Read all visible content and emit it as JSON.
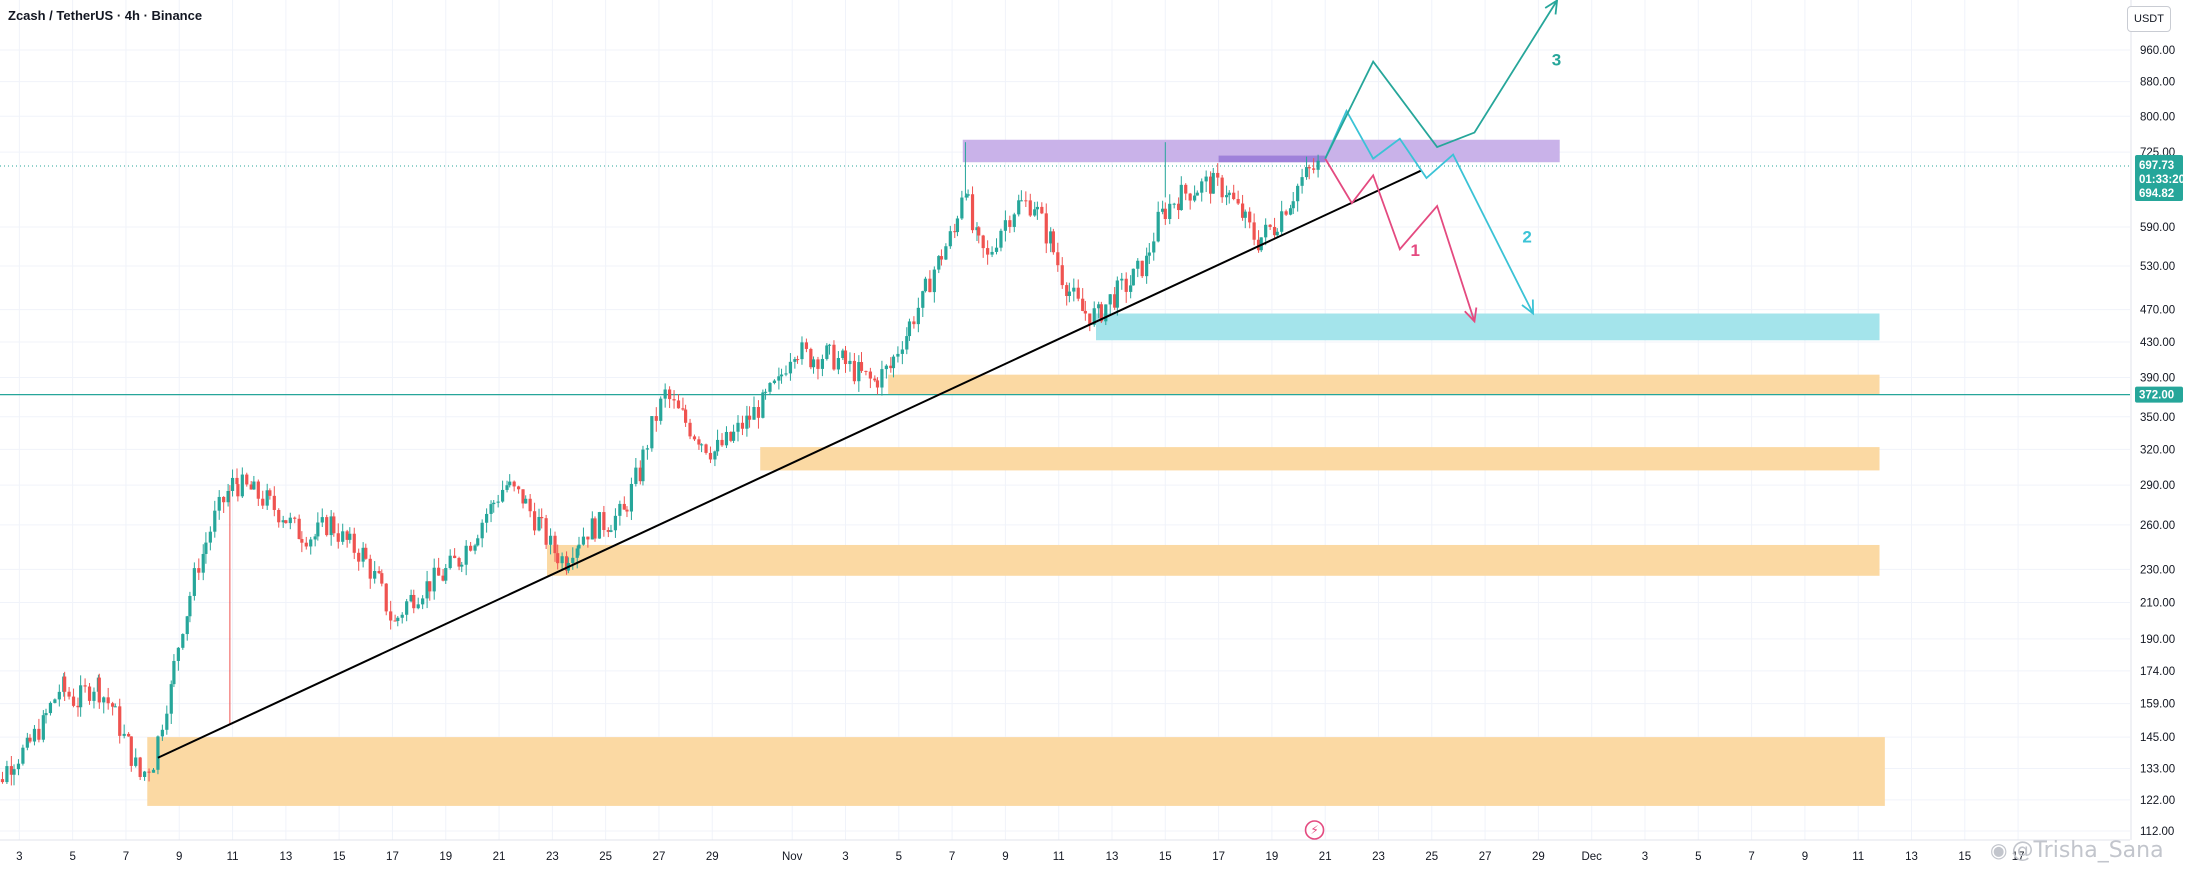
{
  "header": {
    "title": "Zcash / TetherUS · 4h · Binance",
    "currency": "USDT"
  },
  "watermark": "@Trisha_Sana",
  "colors": {
    "up": "#26a69a",
    "down": "#ef5350",
    "zone_orange": "#fbd79e",
    "zone_cyan": "#9fe3ea",
    "zone_purple": "#c6aee8",
    "trend": "#000000",
    "path1": "#e44a80",
    "path2": "#3bc3d6",
    "path3": "#26a69a"
  },
  "chart_data": {
    "type": "candlestick",
    "title": "Zcash / TetherUS · 4h · Binance",
    "xlabel": "",
    "ylabel": "",
    "yscale": "log",
    "ylim": [
      107,
      1120
    ],
    "y_ticks": [
      112,
      122,
      133,
      145,
      159,
      174,
      190,
      210,
      230,
      260,
      290,
      320,
      350,
      390,
      430,
      470,
      530,
      590,
      725,
      800,
      880,
      960
    ],
    "x_ticks": [
      {
        "d": 3,
        "label": "3"
      },
      {
        "d": 5,
        "label": "5"
      },
      {
        "d": 7,
        "label": "7"
      },
      {
        "d": 9,
        "label": "9"
      },
      {
        "d": 11,
        "label": "11"
      },
      {
        "d": 13,
        "label": "13"
      },
      {
        "d": 15,
        "label": "15"
      },
      {
        "d": 17,
        "label": "17"
      },
      {
        "d": 19,
        "label": "19"
      },
      {
        "d": 21,
        "label": "21"
      },
      {
        "d": 23,
        "label": "23"
      },
      {
        "d": 25,
        "label": "25"
      },
      {
        "d": 27,
        "label": "27"
      },
      {
        "d": 29,
        "label": "29"
      },
      {
        "d": 32,
        "label": "Nov"
      },
      {
        "d": 34,
        "label": "3"
      },
      {
        "d": 36,
        "label": "5"
      },
      {
        "d": 38,
        "label": "7"
      },
      {
        "d": 40,
        "label": "9"
      },
      {
        "d": 42,
        "label": "11"
      },
      {
        "d": 44,
        "label": "13"
      },
      {
        "d": 46,
        "label": "15"
      },
      {
        "d": 48,
        "label": "17"
      },
      {
        "d": 50,
        "label": "19"
      },
      {
        "d": 52,
        "label": "21"
      },
      {
        "d": 54,
        "label": "23"
      },
      {
        "d": 56,
        "label": "25"
      },
      {
        "d": 58,
        "label": "27"
      },
      {
        "d": 60,
        "label": "29"
      },
      {
        "d": 62,
        "label": "Dec"
      },
      {
        "d": 64,
        "label": "3"
      },
      {
        "d": 66,
        "label": "5"
      },
      {
        "d": 68,
        "label": "7"
      },
      {
        "d": 70,
        "label": "9"
      },
      {
        "d": 72,
        "label": "11"
      },
      {
        "d": 74,
        "label": "13"
      },
      {
        "d": 76,
        "label": "15"
      },
      {
        "d": 78,
        "label": "17"
      }
    ],
    "anchors": [
      [
        1.6,
        112
      ],
      [
        2.2,
        125
      ],
      [
        2.8,
        135
      ],
      [
        3.4,
        140
      ],
      [
        4.0,
        150
      ],
      [
        4.7,
        166
      ],
      [
        5.3,
        160
      ],
      [
        6.0,
        168
      ],
      [
        6.6,
        158
      ],
      [
        7.2,
        142
      ],
      [
        7.7,
        130
      ],
      [
        8.2,
        136
      ],
      [
        8.8,
        165
      ],
      [
        9.4,
        205
      ],
      [
        10.0,
        240
      ],
      [
        10.5,
        265
      ],
      [
        11.2,
        292
      ],
      [
        11.8,
        286
      ],
      [
        12.4,
        278
      ],
      [
        13.0,
        268
      ],
      [
        13.6,
        255
      ],
      [
        14.2,
        252
      ],
      [
        14.8,
        262
      ],
      [
        15.4,
        248
      ],
      [
        16.0,
        240
      ],
      [
        16.6,
        222
      ],
      [
        17.2,
        198
      ],
      [
        17.8,
        212
      ],
      [
        18.4,
        220
      ],
      [
        19.0,
        226
      ],
      [
        19.6,
        236
      ],
      [
        20.2,
        252
      ],
      [
        20.8,
        272
      ],
      [
        21.4,
        290
      ],
      [
        22.0,
        280
      ],
      [
        22.6,
        262
      ],
      [
        23.2,
        242
      ],
      [
        23.6,
        236
      ],
      [
        24.0,
        248
      ],
      [
        24.6,
        258
      ],
      [
        25.2,
        262
      ],
      [
        25.8,
        268
      ],
      [
        26.4,
        300
      ],
      [
        26.9,
        340
      ],
      [
        27.4,
        372
      ],
      [
        28.0,
        350
      ],
      [
        28.6,
        332
      ],
      [
        29.2,
        318
      ],
      [
        29.8,
        328
      ],
      [
        30.4,
        345
      ],
      [
        31.0,
        362
      ],
      [
        31.6,
        382
      ],
      [
        32.2,
        425
      ],
      [
        32.8,
        412
      ],
      [
        33.4,
        415
      ],
      [
        34.0,
        408
      ],
      [
        34.6,
        395
      ],
      [
        35.2,
        385
      ],
      [
        35.8,
        400
      ],
      [
        36.4,
        440
      ],
      [
        37.0,
        480
      ],
      [
        37.6,
        535
      ],
      [
        38.2,
        580
      ],
      [
        38.6,
        665
      ],
      [
        39.0,
        570
      ],
      [
        39.5,
        540
      ],
      [
        40.0,
        590
      ],
      [
        40.6,
        628
      ],
      [
        41.2,
        630
      ],
      [
        41.8,
        570
      ],
      [
        42.4,
        505
      ],
      [
        43.0,
        468
      ],
      [
        43.6,
        462
      ],
      [
        44.2,
        488
      ],
      [
        44.8,
        505
      ],
      [
        45.4,
        535
      ],
      [
        46.0,
        610
      ],
      [
        46.6,
        640
      ],
      [
        47.2,
        655
      ],
      [
        47.8,
        665
      ],
      [
        48.4,
        655
      ],
      [
        49.0,
        610
      ],
      [
        49.6,
        568
      ],
      [
        50.2,
        590
      ],
      [
        50.8,
        635
      ],
      [
        51.4,
        680
      ],
      [
        51.9,
        698
      ]
    ],
    "current_price": 697.73,
    "current_price_label": "697.73",
    "countdown_label": "01:33:20",
    "prev_close_label": "694.82",
    "level_line": 372,
    "level_line_label": "372.00",
    "zones": [
      {
        "color": "orange",
        "x1": 7.8,
        "x2": 73.0,
        "y_low": 120,
        "y_high": 145
      },
      {
        "color": "orange",
        "x1": 22.8,
        "x2": 72.8,
        "y_low": 226,
        "y_high": 246
      },
      {
        "color": "orange",
        "x1": 30.8,
        "x2": 72.8,
        "y_low": 302,
        "y_high": 322
      },
      {
        "color": "orange",
        "x1": 35.6,
        "x2": 72.8,
        "y_low": 372,
        "y_high": 393
      },
      {
        "color": "cyan",
        "x1": 43.4,
        "x2": 72.8,
        "y_low": 432,
        "y_high": 465
      },
      {
        "color": "purple",
        "x1": 38.4,
        "x2": 60.8,
        "y_low": 705,
        "y_high": 750
      },
      {
        "color": "purple_dark",
        "x1": 48.0,
        "x2": 52.0,
        "y_low": 705,
        "y_high": 718
      }
    ],
    "trendline": [
      [
        8.2,
        137
      ],
      [
        55.6,
        689
      ]
    ],
    "scenarios": [
      {
        "label": "1",
        "color": "path1",
        "points": [
          [
            52.0,
            712
          ],
          [
            53.0,
            630
          ],
          [
            53.8,
            680
          ],
          [
            54.8,
            555
          ],
          [
            56.2,
            625
          ],
          [
            57.6,
            455
          ]
        ],
        "label_at": [
          55.2,
          545
        ]
      },
      {
        "label": "2",
        "color": "path2",
        "points": [
          [
            52.0,
            712
          ],
          [
            52.8,
            812
          ],
          [
            53.8,
            712
          ],
          [
            54.8,
            752
          ],
          [
            55.8,
            675
          ],
          [
            56.8,
            720
          ],
          [
            59.8,
            465
          ]
        ],
        "label_at": [
          59.4,
          565
        ]
      },
      {
        "label": "3",
        "color": "path3",
        "points": [
          [
            52.0,
            712
          ],
          [
            53.8,
            930
          ],
          [
            56.2,
            735
          ],
          [
            57.6,
            765
          ],
          [
            60.7,
            1100
          ]
        ],
        "label_at": [
          60.5,
          920
        ]
      }
    ]
  }
}
